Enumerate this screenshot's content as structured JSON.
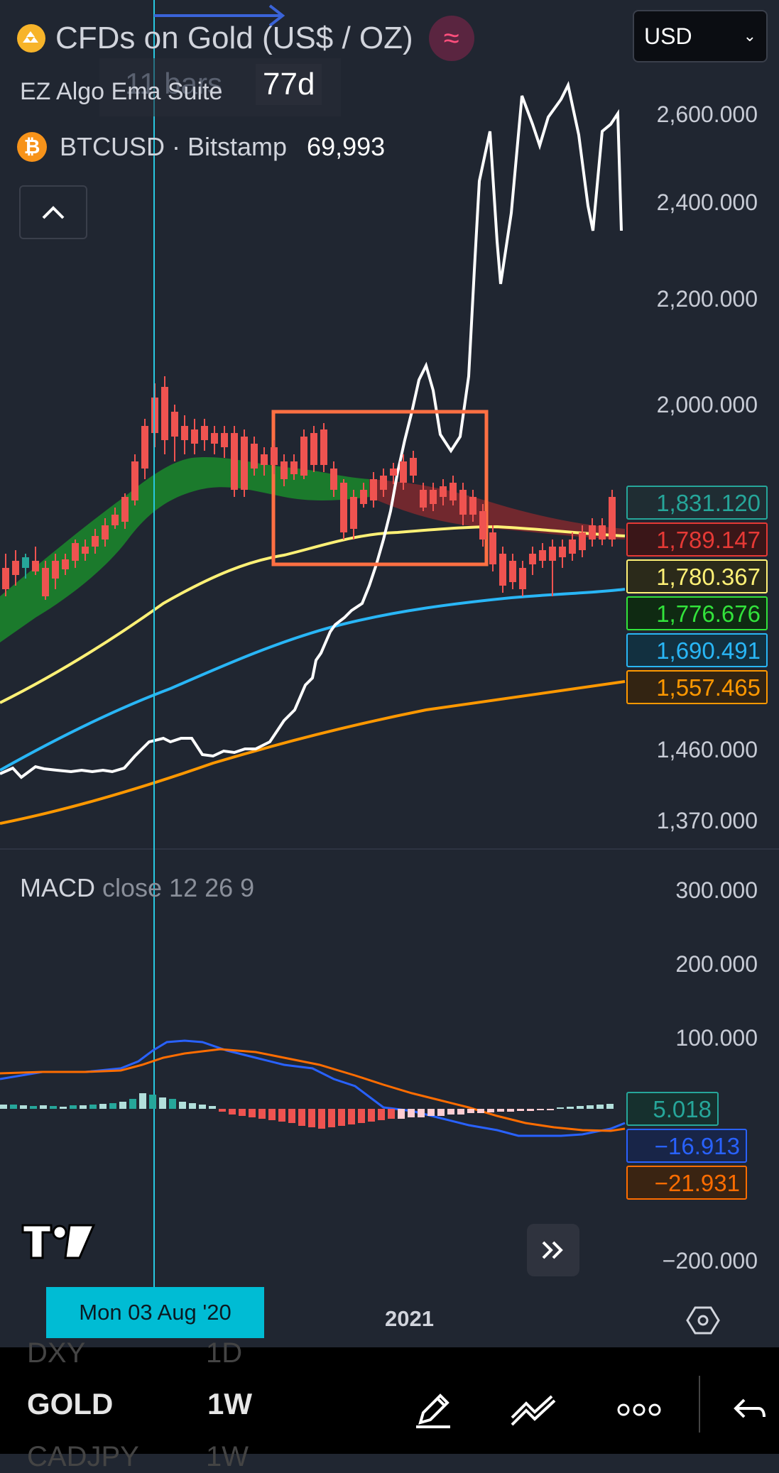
{
  "header": {
    "symbol_title": "CFDs on Gold (US$ / OZ)",
    "currency_select": "USD",
    "indicator_name": "EZ Algo Ema Suite",
    "bars_count": "11 bars",
    "bars_duration": "77d",
    "compare_symbol": "BTCUSD · Bitstamp",
    "compare_value": "69,993"
  },
  "price_axis": [
    "2,600.000",
    "2,400.000",
    "2,200.000",
    "2,000.000",
    "1,460.000",
    "1,370.000"
  ],
  "price_badges": [
    {
      "value": "1,831.120",
      "color": "#26a69a",
      "fill": "#1f2d33"
    },
    {
      "value": "1,789.147",
      "color": "#e53935",
      "fill": "#3a1618"
    },
    {
      "value": "1,780.367",
      "color": "#fff176",
      "fill": "#2b2a1a"
    },
    {
      "value": "1,776.676",
      "color": "#32e33b",
      "fill": "#0f2a12"
    },
    {
      "value": "1,690.491",
      "color": "#29b6f6",
      "fill": "#123040"
    },
    {
      "value": "1,557.465",
      "color": "#ff9800",
      "fill": "#332412"
    }
  ],
  "macd": {
    "title": "MACD",
    "params": "close 12 26 9",
    "axis": [
      "300.000",
      "200.000",
      "100.000",
      "−200.000"
    ],
    "badges": [
      {
        "value": "5.018",
        "color": "#26a69a",
        "fill": "#16302e"
      },
      {
        "value": "−16.913",
        "color": "#2962ff",
        "fill": "#182548"
      },
      {
        "value": "−21.931",
        "color": "#ff6d00",
        "fill": "#3a2412"
      }
    ]
  },
  "time_axis": {
    "crosshair_date": "Mon 03 Aug '20",
    "year_label": "2021"
  },
  "bottom_toolbar": {
    "ticker_above": "DXY",
    "interval_above": "1D",
    "ticker": "GOLD",
    "interval": "1W",
    "ticker_below": "CADJPY",
    "interval_below": "1W"
  },
  "icons": {
    "gold": "gold-bars-icon",
    "indicator_badge": "wave-icon",
    "btc": "bitcoin-icon",
    "collapse": "chevron-up-icon",
    "logo": "tradingview-logo",
    "scroll": "double-chevron-right-icon",
    "settings": "hexagon-settings-icon",
    "draw": "pencil-icon",
    "drawings": "trendline-icon",
    "more": "more-dots-icon",
    "undo": "undo-icon"
  }
}
